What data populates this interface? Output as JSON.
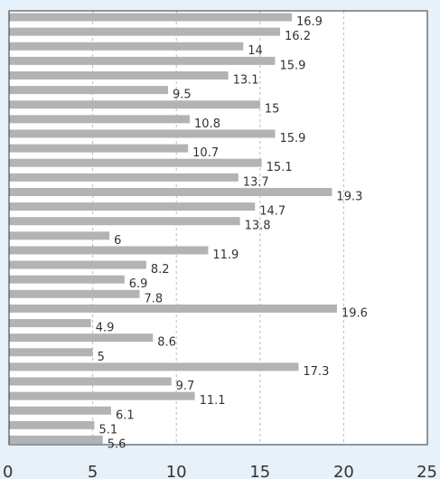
{
  "chart_data": {
    "type": "bar",
    "orientation": "horizontal",
    "title": "",
    "xlabel": "",
    "ylabel": "",
    "xlim": [
      0,
      25
    ],
    "xticks": [
      0,
      5,
      10,
      15,
      20,
      25
    ],
    "grid": true,
    "values": [
      16.9,
      16.2,
      14,
      15.9,
      13.1,
      9.5,
      15,
      10.8,
      15.9,
      10.7,
      15.1,
      13.7,
      19.3,
      14.7,
      13.8,
      6,
      11.9,
      8.2,
      6.9,
      7.8,
      19.6,
      4.9,
      8.6,
      5,
      17.3,
      9.7,
      11.1,
      6.1,
      5.1,
      5.6
    ],
    "value_labels": [
      "16.9",
      "16.2",
      "14",
      "15.9",
      "13.1",
      "9.5",
      "15",
      "10.8",
      "15.9",
      "10.7",
      "15.1",
      "13.7",
      "19.3",
      "14.7",
      "13.8",
      "6",
      "11.9",
      "8.2",
      "6.9",
      "7.8",
      "19.6",
      "4.9",
      "8.6",
      "5",
      "17.3",
      "9.7",
      "11.1",
      "6.1",
      "5.1",
      "5.6"
    ],
    "colors": {
      "bar": "#b3b3b3",
      "background": "#e6f1fa",
      "plot_background": "#ffffff",
      "grid": "#bbbbbb",
      "axis": "#333333"
    }
  }
}
